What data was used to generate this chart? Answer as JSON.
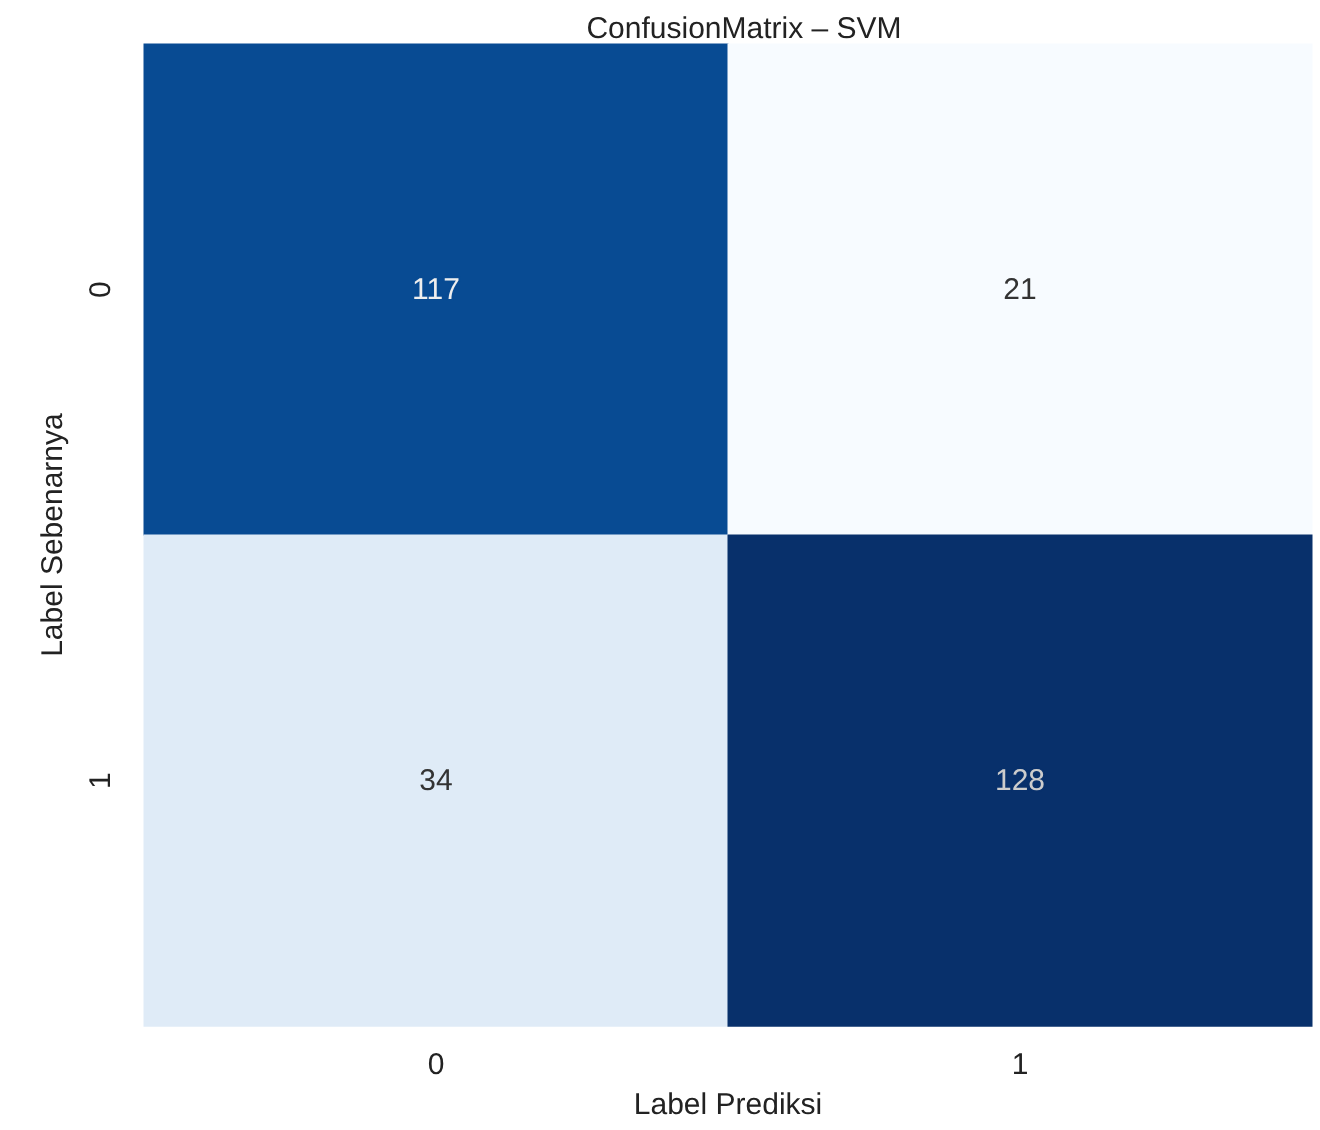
{
  "chart_data": {
    "type": "heatmap",
    "title": "ConfusionMatrix – SVM",
    "xlabel": "Label Prediksi",
    "ylabel": "Label Sebenarnya",
    "categories": [
      "0",
      "1"
    ],
    "y_categories": [
      "0",
      "1"
    ],
    "cells": [
      [
        117,
        21
      ],
      [
        34,
        128
      ]
    ],
    "data_labels": true
  }
}
